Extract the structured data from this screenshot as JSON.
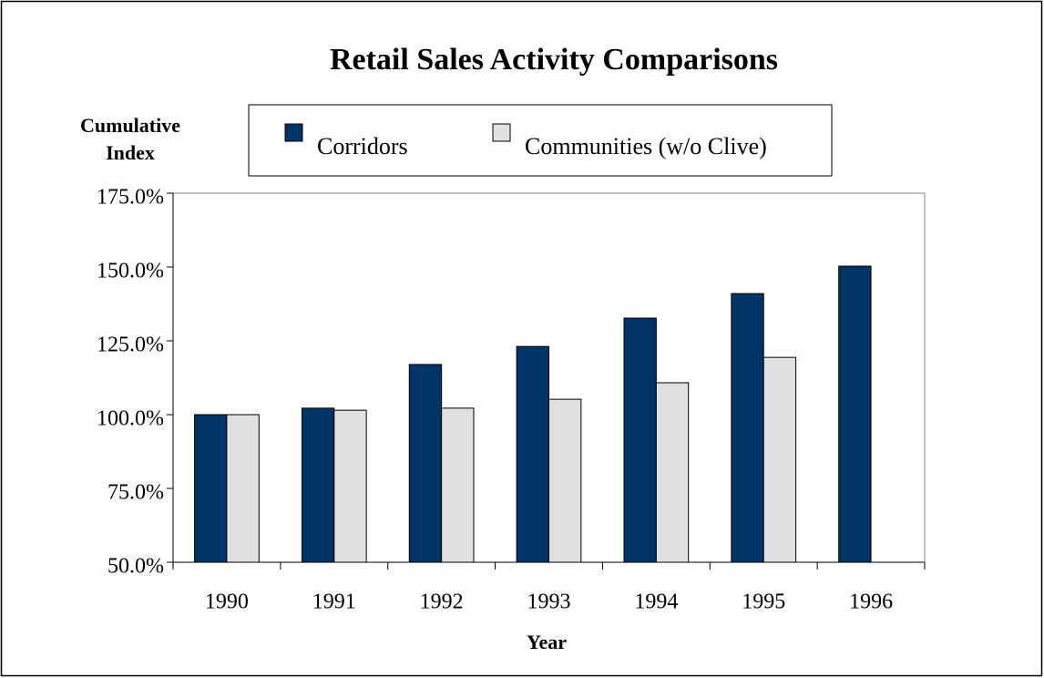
{
  "chart_data": {
    "type": "bar",
    "title": "Retail Sales Activity Comparisons",
    "y_label": [
      "Cumulative",
      "Index"
    ],
    "x_label": "Year",
    "categories": [
      "1990",
      "1991",
      "1992",
      "1993",
      "1994",
      "1995",
      "1996"
    ],
    "series": [
      {
        "name": "Corridors",
        "color": "#003366",
        "values": [
          100,
          102.2,
          117,
          123.1,
          132.7,
          141,
          150.3
        ]
      },
      {
        "name": "Communities (w/o Clive)",
        "color": "#e0e0e0",
        "values": [
          100,
          101.5,
          102.2,
          105.2,
          110.8,
          119.4,
          null
        ]
      }
    ],
    "ylim": [
      50,
      175
    ],
    "yticks": [
      {
        "value": 50,
        "label": "50.0%"
      },
      {
        "value": 75,
        "label": "75.0%"
      },
      {
        "value": 100,
        "label": "100.0%"
      },
      {
        "value": 125,
        "label": "125.0%"
      },
      {
        "value": 150,
        "label": "150.0%"
      },
      {
        "value": 175,
        "label": "175.0%"
      }
    ],
    "grid": false
  }
}
